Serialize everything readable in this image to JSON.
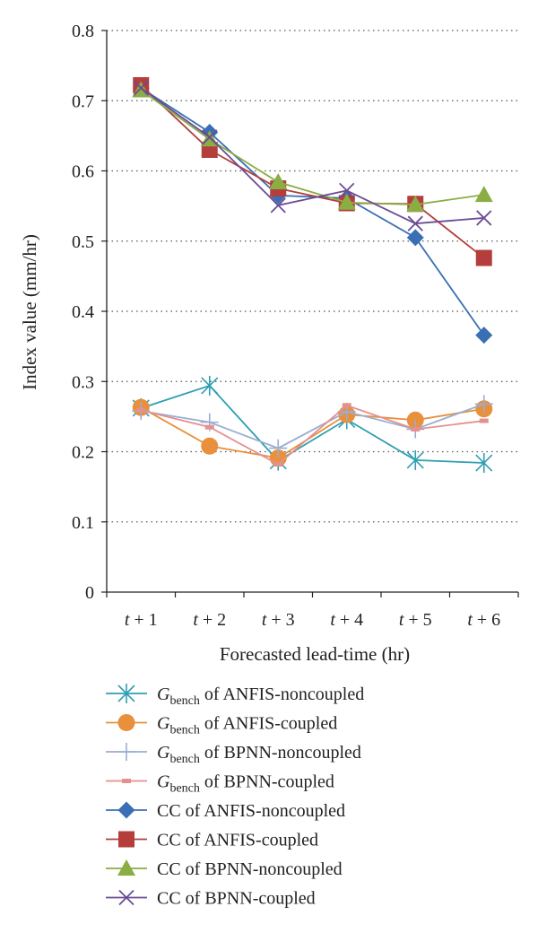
{
  "chart_data": {
    "type": "line",
    "categories": [
      "t + 1",
      "t + 2",
      "t + 3",
      "t + 4",
      "t + 5",
      "t + 6"
    ],
    "xlabel": "Forecasted lead-time (hr)",
    "ylabel": "Index value (mm/hr)",
    "ylim": [
      0,
      0.8
    ],
    "yticks": [
      "0",
      "0.1",
      "0.2",
      "0.3",
      "0.4",
      "0.5",
      "0.6",
      "0.7",
      "0.8"
    ],
    "grid": "horizontal dotted",
    "legend_position": "bottom",
    "series": [
      {
        "name": "Gbench of ANFIS-noncoupled",
        "legend_main": "G",
        "legend_sub": "bench",
        "legend_rest": " of ANFIS-noncoupled",
        "color": "#2e9fb2",
        "marker": "asterisk",
        "values": [
          0.262,
          0.294,
          0.187,
          0.246,
          0.188,
          0.184
        ]
      },
      {
        "name": "Gbench of ANFIS-coupled",
        "legend_main": "G",
        "legend_sub": "bench",
        "legend_rest": " of ANFIS-coupled",
        "color": "#e8903c",
        "marker": "circle",
        "values": [
          0.263,
          0.208,
          0.191,
          0.253,
          0.245,
          0.261
        ]
      },
      {
        "name": "Gbench of BPNN-noncoupled",
        "legend_main": "G",
        "legend_sub": "bench",
        "legend_rest": " of BPNN-noncoupled",
        "color": "#9aaed0",
        "marker": "plus",
        "values": [
          0.258,
          0.242,
          0.205,
          0.257,
          0.232,
          0.268
        ]
      },
      {
        "name": "Gbench of BPNN-coupled",
        "legend_main": "G",
        "legend_sub": "bench",
        "legend_rest": " of BPNN-coupled",
        "color": "#e4908f",
        "marker": "dash",
        "values": [
          0.259,
          0.235,
          0.182,
          0.266,
          0.232,
          0.244
        ]
      },
      {
        "name": "CC of ANFIS-noncoupled",
        "legend_main": "CC of ANFIS-noncoupled",
        "color": "#3a6fb5",
        "marker": "diamond",
        "values": [
          0.718,
          0.655,
          0.565,
          0.561,
          0.505,
          0.366
        ]
      },
      {
        "name": "CC of ANFIS-coupled",
        "legend_main": "CC of ANFIS-coupled",
        "color": "#b33e3c",
        "marker": "square",
        "values": [
          0.722,
          0.63,
          0.575,
          0.554,
          0.553,
          0.476
        ]
      },
      {
        "name": "CC of BPNN-noncoupled",
        "legend_main": "CC of BPNN-noncoupled",
        "color": "#8aad44",
        "marker": "triangle",
        "values": [
          0.715,
          0.645,
          0.584,
          0.555,
          0.552,
          0.566
        ]
      },
      {
        "name": "CC of BPNN-coupled",
        "legend_main": "CC of BPNN-coupled",
        "color": "#6a4c95",
        "marker": "x",
        "values": [
          0.718,
          0.648,
          0.551,
          0.572,
          0.525,
          0.533
        ]
      }
    ]
  }
}
